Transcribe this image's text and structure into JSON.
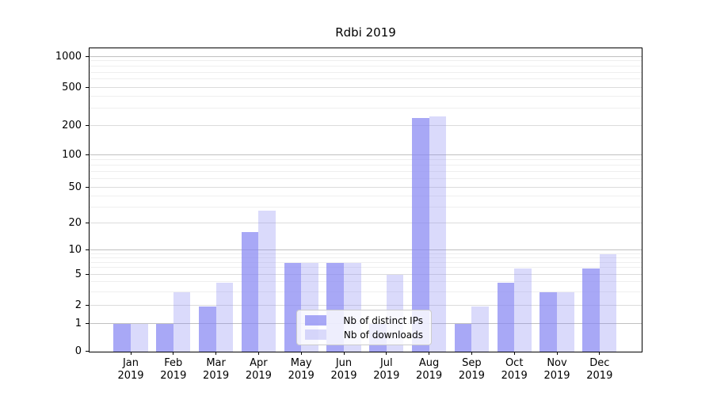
{
  "chart_data": {
    "type": "bar",
    "title": "Rdbi 2019",
    "categories": [
      {
        "month": "Jan",
        "year": "2019"
      },
      {
        "month": "Feb",
        "year": "2019"
      },
      {
        "month": "Mar",
        "year": "2019"
      },
      {
        "month": "Apr",
        "year": "2019"
      },
      {
        "month": "May",
        "year": "2019"
      },
      {
        "month": "Jun",
        "year": "2019"
      },
      {
        "month": "Jul",
        "year": "2019"
      },
      {
        "month": "Aug",
        "year": "2019"
      },
      {
        "month": "Sep",
        "year": "2019"
      },
      {
        "month": "Oct",
        "year": "2019"
      },
      {
        "month": "Nov",
        "year": "2019"
      },
      {
        "month": "Dec",
        "year": "2019"
      }
    ],
    "series": [
      {
        "name": "Nb of distinct IPs",
        "values": [
          1,
          1,
          2,
          16,
          7,
          7,
          1,
          242,
          1,
          4,
          3,
          6
        ]
      },
      {
        "name": "Nb of downloads",
        "values": [
          1,
          3,
          4,
          28,
          7,
          7,
          5,
          254,
          2,
          6,
          3,
          9
        ]
      }
    ],
    "yticks": [
      0,
      1,
      2,
      5,
      10,
      20,
      50,
      100,
      200,
      500,
      1000
    ],
    "yscale": "symlog",
    "ylim": [
      0,
      1000
    ],
    "xlabel": "",
    "ylabel": "",
    "grid": true,
    "legend_position": "inside lower center"
  },
  "colors": {
    "bar_base": "#8686f2",
    "bar_distinct_ips_alpha": 0.72,
    "bar_downloads_alpha": 0.31,
    "bar_distinct_ips_displayed": "#aaaaf5",
    "bar_downloads_displayed": "#dadaf9",
    "grid_major": "#c0c0c0",
    "grid_mid": "#dcdcdc",
    "grid_minor": "#efefef",
    "axis_frame": "#000000",
    "legend_border": "#cccccc",
    "text": "#000000"
  }
}
